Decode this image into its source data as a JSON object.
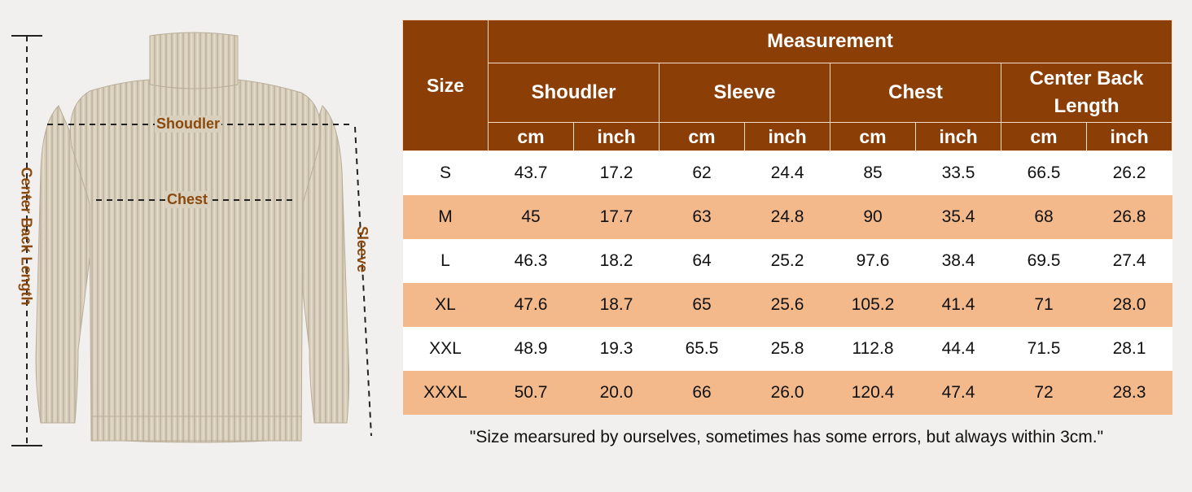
{
  "figure": {
    "labels": {
      "shoulder": "Shoudler",
      "chest": "Chest",
      "sleeve": "Sleeve",
      "center_back_length": "Center Back Length"
    },
    "garment": "turtleneck sweater"
  },
  "table": {
    "size_header": "Size",
    "measurement_header": "Measurement",
    "groups": [
      {
        "label": "Shoudler",
        "units": [
          "cm",
          "inch"
        ]
      },
      {
        "label": "Sleeve",
        "units": [
          "cm",
          "inch"
        ]
      },
      {
        "label": "Chest",
        "units": [
          "cm",
          "inch"
        ]
      },
      {
        "label": "Center Back Length",
        "units": [
          "cm",
          "inch"
        ]
      }
    ],
    "rows": [
      {
        "size": "S",
        "values": [
          "43.7",
          "17.2",
          "62",
          "24.4",
          "85",
          "33.5",
          "66.5",
          "26.2"
        ]
      },
      {
        "size": "M",
        "values": [
          "45",
          "17.7",
          "63",
          "24.8",
          "90",
          "35.4",
          "68",
          "26.8"
        ]
      },
      {
        "size": "L",
        "values": [
          "46.3",
          "18.2",
          "64",
          "25.2",
          "97.6",
          "38.4",
          "69.5",
          "27.4"
        ]
      },
      {
        "size": "XL",
        "values": [
          "47.6",
          "18.7",
          "65",
          "25.6",
          "105.2",
          "41.4",
          "71",
          "28.0"
        ]
      },
      {
        "size": "XXL",
        "values": [
          "48.9",
          "19.3",
          "65.5",
          "25.8",
          "112.8",
          "44.4",
          "71.5",
          "28.1"
        ]
      },
      {
        "size": "XXXL",
        "values": [
          "50.7",
          "20.0",
          "66",
          "26.0",
          "120.4",
          "47.4",
          "72",
          "28.3"
        ]
      }
    ]
  },
  "footnote": "\"Size mearsured by ourselves, sometimes has some errors, but always within 3cm.\"",
  "colors": {
    "header_bg": "#8b3f07",
    "alt_row_bg": "#f3b98a",
    "label_color": "#8a4a0e",
    "garment": "#d9cfbd"
  }
}
